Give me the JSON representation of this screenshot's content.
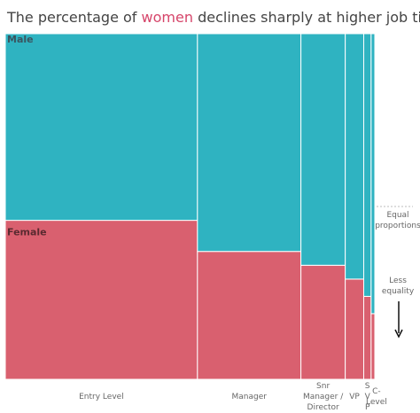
{
  "chart_data": {
    "type": "marimekko",
    "title": {
      "before": "The percentage of",
      "highlight": "women",
      "after": "declines sharply at higher job titles",
      "highlight_color": "#d6456a"
    },
    "categories": [
      [
        "Entry Level"
      ],
      [
        "Manager"
      ],
      [
        "Snr",
        "Manager /",
        "Director"
      ],
      [
        "VP"
      ],
      [
        "S",
        "V",
        "P"
      ],
      [
        "C-",
        "Level"
      ]
    ],
    "widths": [
      52,
      28,
      12,
      5,
      2,
      1
    ],
    "xlim": [
      0,
      100
    ],
    "ylim": [
      0,
      100
    ],
    "series": [
      {
        "name": "Female",
        "color": "#d9606f",
        "values": [
          46,
          37,
          33,
          29,
          24,
          19
        ]
      },
      {
        "name": "Male",
        "color": "#2fb3c1",
        "values": [
          54,
          63,
          67,
          71,
          76,
          81
        ]
      }
    ],
    "equal_line": 50,
    "annotations": [
      [
        "Equal",
        "proportions"
      ],
      [
        "Less",
        "equality"
      ]
    ]
  }
}
